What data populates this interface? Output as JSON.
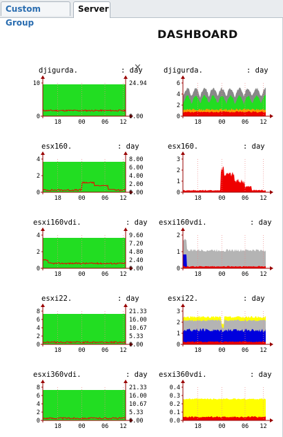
{
  "tabs": [
    {
      "label": "Custom Group",
      "active": false
    },
    {
      "label": "Server",
      "active": true
    }
  ],
  "dashboard": {
    "title": "DASHBOARD",
    "close_icon": "×"
  },
  "x_ticks": [
    "18",
    "00",
    "06",
    "12"
  ],
  "colors": {
    "green": "#22dd22",
    "red": "#ee0000",
    "grey": "#b4b4b4",
    "darkgrey": "#888888",
    "blue": "#0000dd",
    "yellow": "#ffff00",
    "orange": "#ff9900",
    "axis": "#990000"
  },
  "rows": [
    {
      "left": {
        "name": "djigurda.",
        "period": ": day",
        "y_ticks": [
          "10",
          "0"
        ],
        "right_ticks": [
          "24.94",
          "0.00"
        ]
      },
      "right": {
        "name": "djigurda.",
        "period": ": day",
        "y_ticks": [
          "6",
          "4",
          "2",
          "0"
        ]
      }
    },
    {
      "left": {
        "name": "esx160.",
        "period": ": day",
        "y_ticks": [
          "4",
          "2",
          "0"
        ],
        "right_ticks": [
          "8.00",
          "6.00",
          "4.00",
          "2.00",
          "0.00"
        ]
      },
      "right": {
        "name": "esx160.",
        "period": ": day",
        "y_ticks": [
          "3",
          "2",
          "1",
          "0"
        ]
      }
    },
    {
      "left": {
        "name": "esxi160vdi.",
        "period": ": day",
        "y_ticks": [
          "4",
          "2",
          "0"
        ],
        "right_ticks": [
          "9.60",
          "7.20",
          "4.80",
          "2.40",
          "0.00"
        ]
      },
      "right": {
        "name": "esxi160vdi.",
        "period": ": day",
        "y_ticks": [
          "2",
          "1",
          "0"
        ]
      }
    },
    {
      "left": {
        "name": "esxi22.",
        "period": ": day",
        "y_ticks": [
          "8",
          "6",
          "4",
          "2",
          "0"
        ],
        "right_ticks": [
          "21.33",
          "16.00",
          "10.67",
          "5.33",
          "0.00"
        ]
      },
      "right": {
        "name": "esxi22.",
        "period": ": day",
        "y_ticks": [
          "3",
          "2",
          "1",
          "0"
        ]
      }
    },
    {
      "left": {
        "name": "esxi360vdi.",
        "period": ": day",
        "y_ticks": [
          "8",
          "6",
          "4",
          "2",
          "0"
        ],
        "right_ticks": [
          "21.33",
          "16.00",
          "10.67",
          "5.33",
          "0.00"
        ]
      },
      "right": {
        "name": "esxi360vdi.",
        "period": ": day",
        "y_ticks": [
          "0.4",
          "0.3",
          "0.2",
          "0.1",
          "0.0"
        ]
      }
    }
  ]
}
